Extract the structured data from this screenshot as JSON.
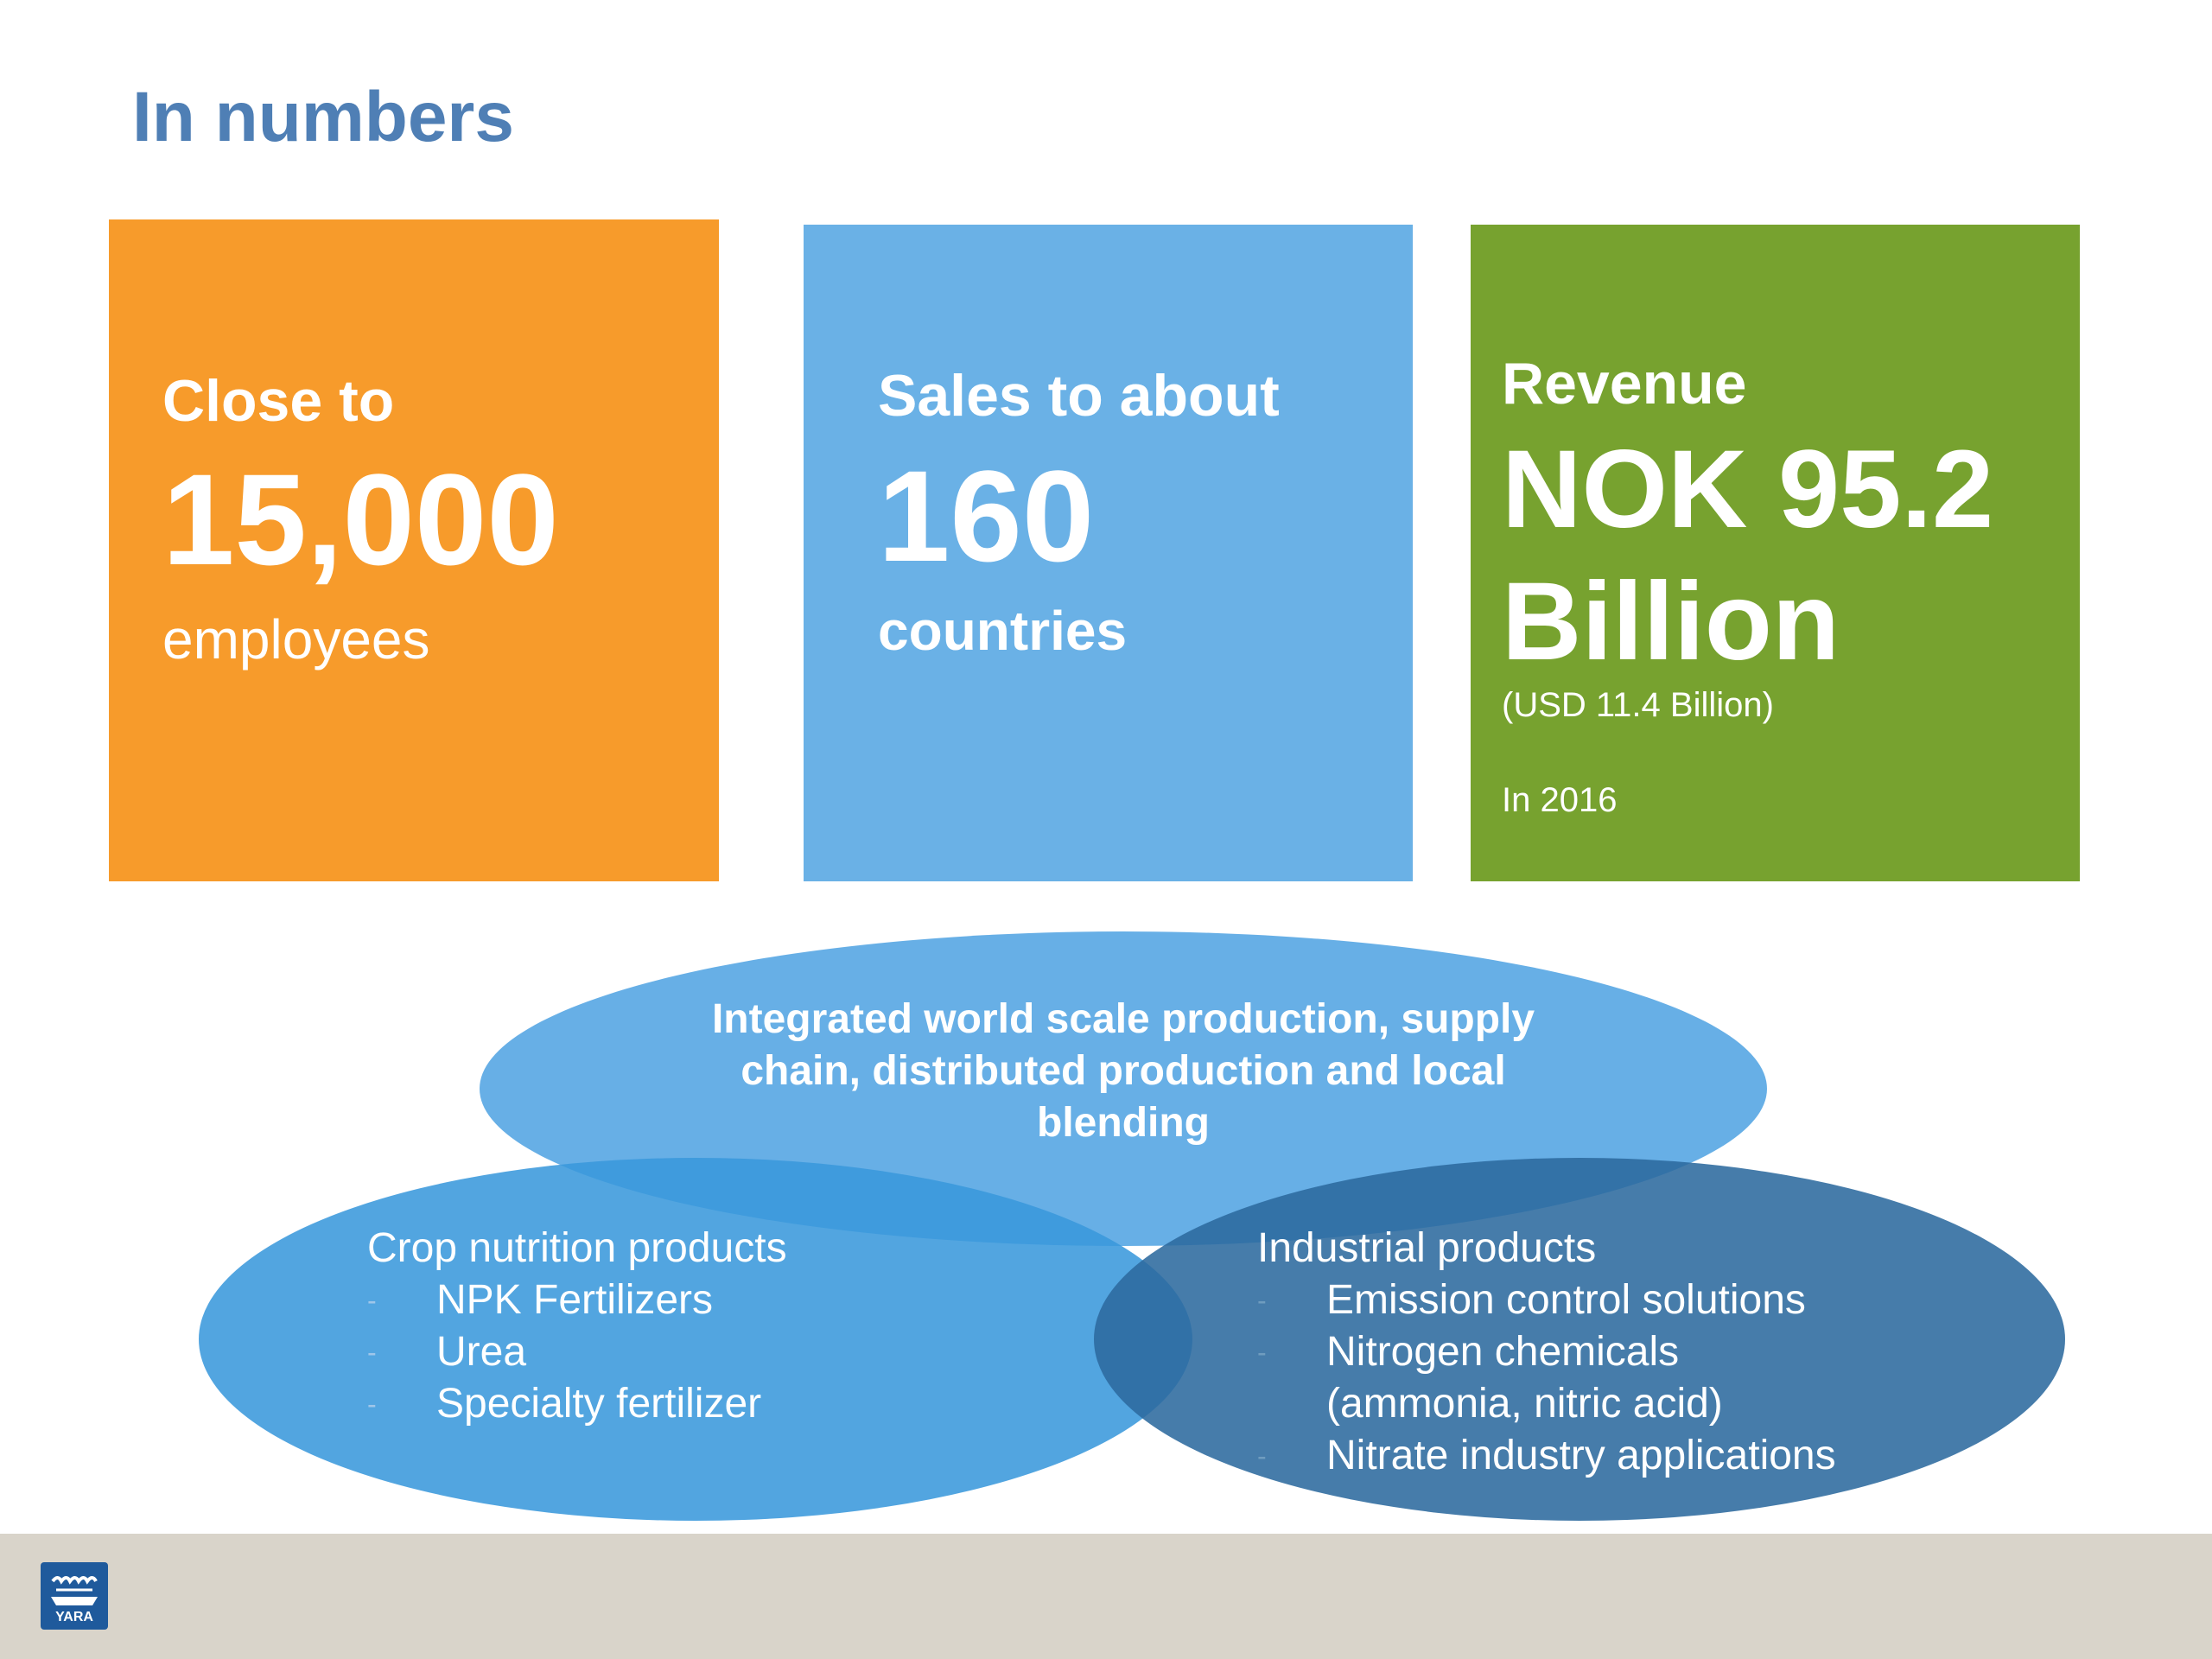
{
  "title": "In numbers",
  "boxes": {
    "employees": {
      "lead": "Close to",
      "value": "15,000",
      "unit": "employees",
      "color": "#f79b2b"
    },
    "countries": {
      "lead": "Sales to about",
      "value": "160",
      "unit": "countries",
      "color": "#6ab1e6"
    },
    "revenue": {
      "lead": "Revenue",
      "value_line1": "NOK 95.2",
      "value_line2": "Billion",
      "usd": "(USD 11.4 Billion)",
      "year": "In 2016",
      "color": "#77a22f"
    }
  },
  "venn": {
    "top": {
      "text": "Integrated world scale production, supply chain, distributed production and local blending",
      "color": "#5aa8e4"
    },
    "left": {
      "heading": "Crop nutrition products",
      "items": [
        "NPK Fertilizers",
        "Urea",
        "Specialty fertilizer"
      ],
      "color": "#4a9edd"
    },
    "right": {
      "heading": "Industrial products",
      "items": [
        "Emission control solutions",
        "Nitrogen chemicals",
        "(ammonia, nitric acid)",
        "Nitrate industry applications"
      ],
      "color": "#3a78aa"
    },
    "dash": "-"
  },
  "footer": {
    "logo_text": "YARA",
    "background": "#d9d4ca"
  }
}
